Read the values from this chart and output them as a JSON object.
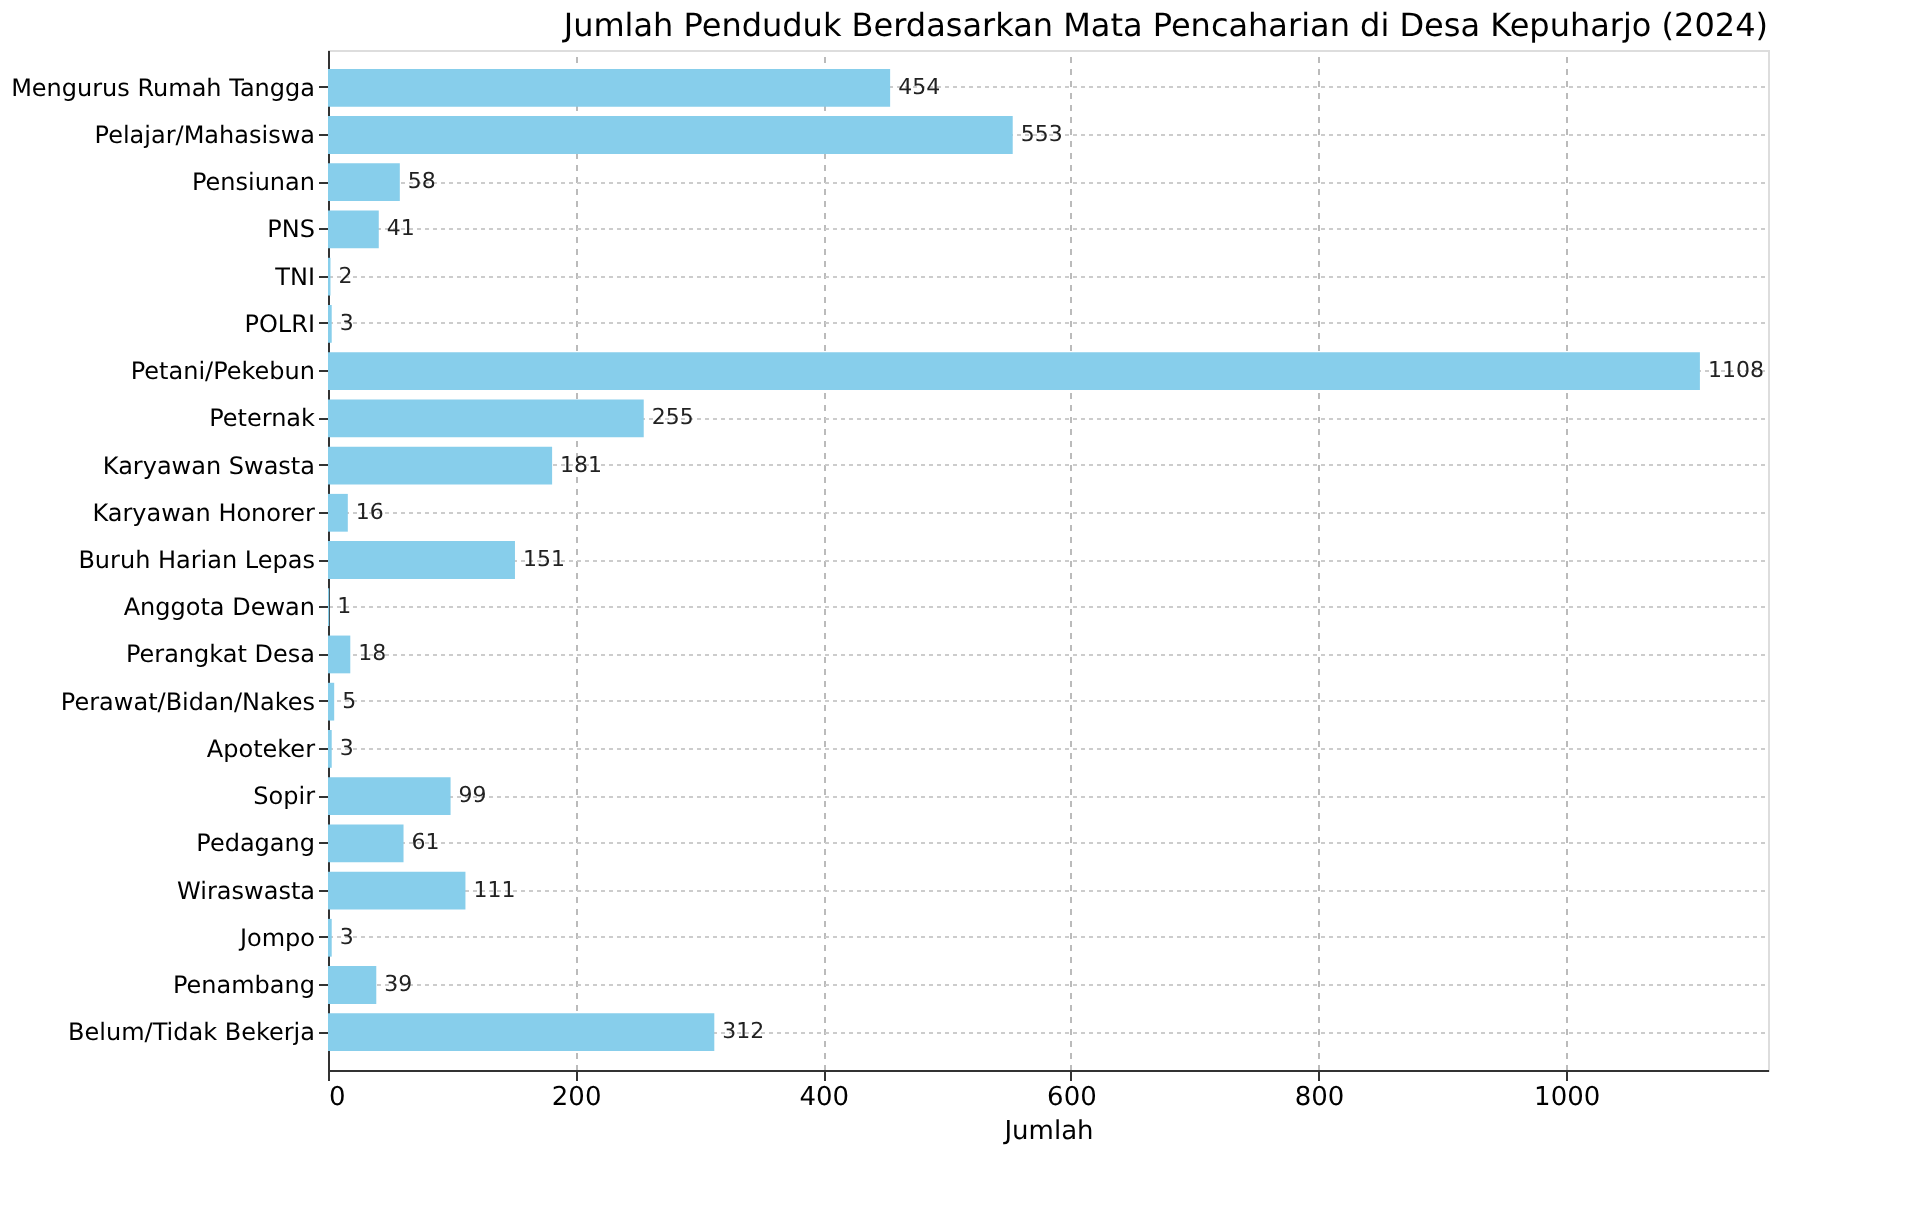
{
  "chart_data": {
    "type": "bar",
    "orientation": "horizontal",
    "title": "Jumlah Penduduk Berdasarkan Mata Pencaharian di Desa Kepuharjo (2024)",
    "xlabel": "Jumlah",
    "categories": [
      "Mengurus Rumah Tangga",
      "Pelajar/Mahasiswa",
      "Pensiunan",
      "PNS",
      "TNI",
      "POLRI",
      "Petani/Pekebun",
      "Peternak",
      "Karyawan Swasta",
      "Karyawan Honorer",
      "Buruh Harian Lepas",
      "Anggota Dewan",
      "Perangkat Desa",
      "Perawat/Bidan/Nakes",
      "Apoteker",
      "Sopir",
      "Pedagang",
      "Wiraswasta",
      "Jompo",
      "Penambang",
      "Belum/Tidak Bekerja"
    ],
    "values": [
      454,
      553,
      58,
      41,
      2,
      3,
      1108,
      255,
      181,
      16,
      151,
      1,
      18,
      5,
      3,
      99,
      61,
      111,
      3,
      39,
      312
    ],
    "color": "#87ceeb",
    "xlim": [
      0,
      1163
    ],
    "xticks": [
      0,
      200,
      400,
      600,
      800,
      1000
    ],
    "grid": true,
    "data_labels": true
  }
}
